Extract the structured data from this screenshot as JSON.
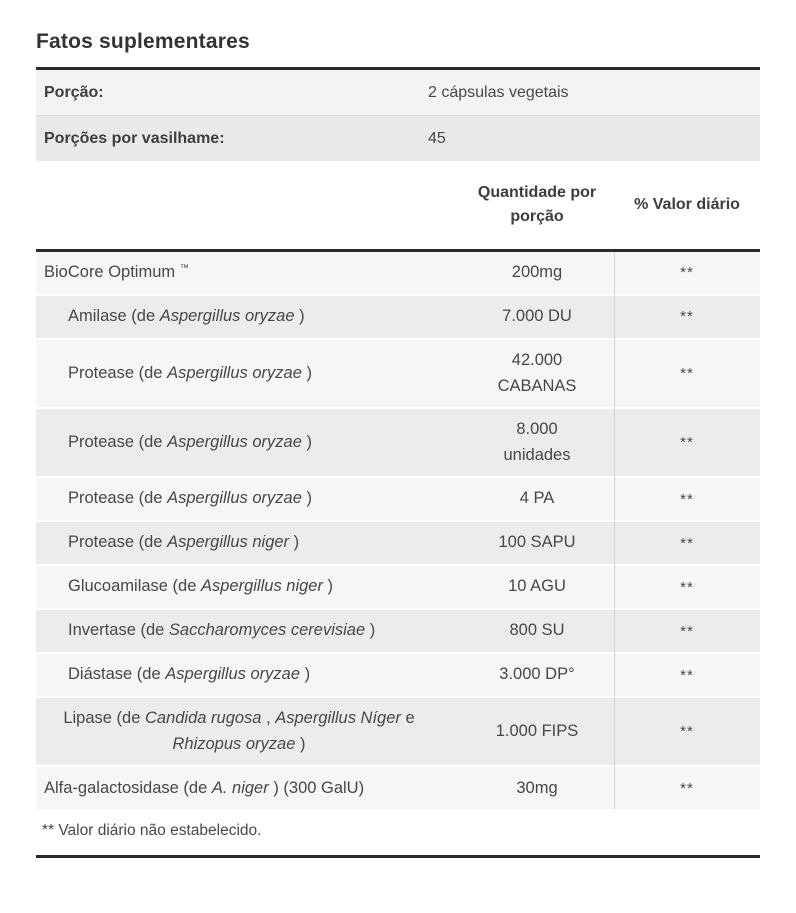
{
  "title": "Fatos suplementares",
  "serving_info": [
    {
      "label": "Porção:",
      "value": "2 cápsulas vegetais"
    },
    {
      "label": "Porções por vasilhame:",
      "value": "45"
    }
  ],
  "columns": {
    "amount": "Quantidade por porção",
    "daily_value": "% Valor diário"
  },
  "ingredients": [
    {
      "name": [
        {
          "text": "BioCore Optimum "
        },
        {
          "text": "™",
          "style": "sup"
        }
      ],
      "amount": [
        "200mg"
      ],
      "daily_value": "**",
      "indent": false
    },
    {
      "name": [
        {
          "text": "Amilase (de "
        },
        {
          "text": "Aspergillus oryzae",
          "style": "italic"
        },
        {
          "text": " )"
        }
      ],
      "amount": [
        "7.000 DU"
      ],
      "daily_value": "**",
      "indent": true
    },
    {
      "name": [
        {
          "text": "Protease (de "
        },
        {
          "text": "Aspergillus oryzae",
          "style": "italic"
        },
        {
          "text": " )"
        }
      ],
      "amount": [
        "42.000",
        "CABANAS"
      ],
      "daily_value": "**",
      "indent": true
    },
    {
      "name": [
        {
          "text": "Protease (de "
        },
        {
          "text": "Aspergillus oryzae",
          "style": "italic"
        },
        {
          "text": " )"
        }
      ],
      "amount": [
        "8.000",
        "unidades"
      ],
      "daily_value": "**",
      "indent": true
    },
    {
      "name": [
        {
          "text": "Protease (de "
        },
        {
          "text": "Aspergillus oryzae",
          "style": "italic"
        },
        {
          "text": " )"
        }
      ],
      "amount": [
        "4 PA"
      ],
      "daily_value": "**",
      "indent": true
    },
    {
      "name": [
        {
          "text": "Protease (de "
        },
        {
          "text": "Aspergillus niger",
          "style": "italic"
        },
        {
          "text": " )"
        }
      ],
      "amount": [
        "100 SAPU"
      ],
      "daily_value": "**",
      "indent": true
    },
    {
      "name": [
        {
          "text": "Glucoamilase (de "
        },
        {
          "text": "Aspergillus niger",
          "style": "italic"
        },
        {
          "text": " )"
        }
      ],
      "amount": [
        "10 AGU"
      ],
      "daily_value": "**",
      "indent": true
    },
    {
      "name": [
        {
          "text": "Invertase (de "
        },
        {
          "text": "Saccharomyces cerevisiae",
          "style": "italic"
        },
        {
          "text": " )"
        }
      ],
      "amount": [
        "800 SU"
      ],
      "daily_value": "**",
      "indent": true
    },
    {
      "name": [
        {
          "text": "Diástase (de "
        },
        {
          "text": "Aspergillus oryzae",
          "style": "italic"
        },
        {
          "text": " )"
        }
      ],
      "amount": [
        "3.000 DP°"
      ],
      "daily_value": "**",
      "indent": true
    },
    {
      "name": [
        {
          "text": "Lipase (de "
        },
        {
          "text": "Candida rugosa",
          "style": "italic"
        },
        {
          "text": " , "
        },
        {
          "text": "Aspergillus Níger",
          "style": "italic"
        },
        {
          "text": " e "
        },
        {
          "text": "Rhizopus oryzae",
          "style": "italic"
        },
        {
          "text": " )"
        }
      ],
      "amount": [
        "1.000 FIPS"
      ],
      "daily_value": "**",
      "indent": true,
      "center": true
    },
    {
      "name": [
        {
          "text": "Alfa-galactosidase (de "
        },
        {
          "text": "A. niger",
          "style": "italic"
        },
        {
          "text": " ) (300 GalU)"
        }
      ],
      "amount": [
        "30mg"
      ],
      "daily_value": "**",
      "indent": false
    }
  ],
  "footnote": "** Valor diário não estabelecido."
}
